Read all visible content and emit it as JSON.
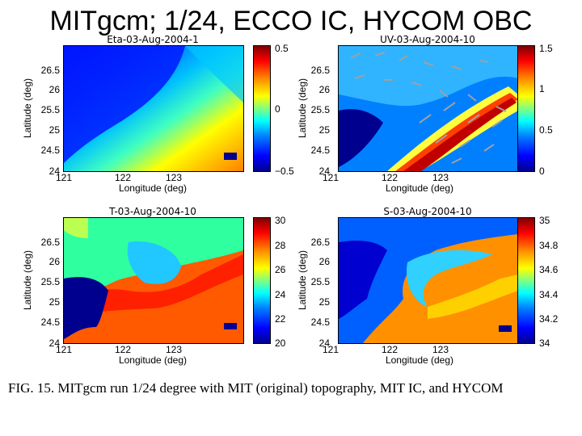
{
  "slide": {
    "title": "MITgcm; 1/24, ECCO IC, HYCOM OBC"
  },
  "panels": [
    {
      "title": "Eta-03-Aug-2004-1",
      "xlabel": "Longitude (deg)",
      "ylabel": "Latitude (deg)",
      "xticks": [
        "121",
        "122",
        "123"
      ],
      "yticks": [
        "26.5",
        "26",
        "25.5",
        "25",
        "24.5",
        "24"
      ],
      "colorbar_ticks": [
        "0.5",
        "0",
        "−0.5"
      ]
    },
    {
      "title": "UV-03-Aug-2004-10",
      "xlabel": "Longitude (deg)",
      "ylabel": "Latitude (deg)",
      "xticks": [
        "121",
        "122",
        "123"
      ],
      "yticks": [
        "26.5",
        "26",
        "25.5",
        "25",
        "24.5",
        "24"
      ],
      "colorbar_ticks": [
        "1.5",
        "1",
        "0.5",
        "0"
      ]
    },
    {
      "title": "T-03-Aug-2004-10",
      "xlabel": "Longitude (deg)",
      "ylabel": "Latitude (deg)",
      "xticks": [
        "121",
        "122",
        "123"
      ],
      "yticks": [
        "26.5",
        "26",
        "25.5",
        "25",
        "24.5",
        "24"
      ],
      "colorbar_ticks": [
        "30",
        "28",
        "26",
        "24",
        "22",
        "20"
      ]
    },
    {
      "title": "S-03-Aug-2004-10",
      "xlabel": "Longitude (deg)",
      "ylabel": "Latitude (deg)",
      "xticks": [
        "121",
        "122",
        "123"
      ],
      "yticks": [
        "26.5",
        "26",
        "25.5",
        "25",
        "24.5",
        "24"
      ],
      "colorbar_ticks": [
        "35",
        "34.8",
        "34.6",
        "34.4",
        "34.2",
        "34"
      ]
    }
  ],
  "caption": "FIG. 15. MITgcm run 1/24 degree with MIT (original) topography, MIT IC, and HYCOM",
  "colors": {
    "land": "#00008f",
    "jet_core": "#c00000",
    "vector": "#a0a0a0"
  }
}
